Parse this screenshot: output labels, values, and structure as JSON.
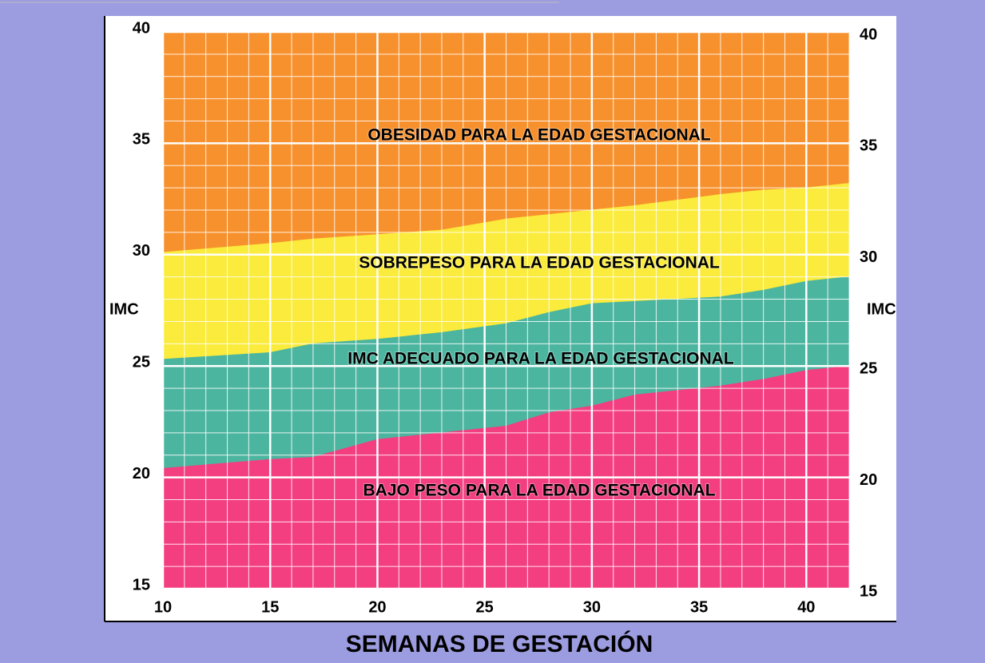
{
  "chart_data": {
    "type": "band",
    "x_label": "SEMANAS DE GESTACIÓN",
    "y_label": "IMC",
    "x": [
      10,
      15,
      17,
      20,
      23,
      26,
      28,
      30,
      32,
      36,
      38,
      40,
      42
    ],
    "boundaries": [
      [
        20.4,
        20.8,
        20.9,
        21.7,
        22.0,
        22.3,
        22.9,
        23.2,
        23.7,
        24.1,
        24.4,
        24.8,
        25.0
      ],
      [
        25.3,
        25.6,
        26.0,
        26.2,
        26.5,
        26.9,
        27.4,
        27.8,
        27.9,
        28.1,
        28.4,
        28.8,
        29.0
      ],
      [
        30.1,
        30.5,
        30.7,
        30.9,
        31.1,
        31.6,
        31.8,
        32.0,
        32.2,
        32.7,
        32.9,
        33.0,
        33.2
      ]
    ],
    "bands": [
      {
        "name": "BAJO PESO PARA LA EDAD GESTACIONAL",
        "color": "#f33e80"
      },
      {
        "name": "IMC ADECUADO PARA LA EDAD GESTACIONAL",
        "color": "#4cb5a0"
      },
      {
        "name": "SOBREPESO PARA LA EDAD GESTACIONAL",
        "color": "#faeb3c"
      },
      {
        "name": "OBESIDAD PARA LA EDAD GESTACIONAL",
        "color": "#f7912d"
      }
    ],
    "xlim": [
      10,
      42
    ],
    "ylim": [
      15,
      40
    ],
    "xticks": [
      10,
      15,
      20,
      25,
      30,
      35,
      40
    ],
    "yticks": [
      15,
      20,
      25,
      30,
      35,
      40
    ],
    "xminorticks": [
      10,
      11,
      12,
      13,
      14,
      15,
      16,
      17,
      18,
      19,
      20,
      21,
      22,
      23,
      24,
      25,
      26,
      27,
      28,
      29,
      30,
      31,
      32,
      33,
      34,
      35,
      36,
      37,
      38,
      39,
      40,
      41,
      42
    ],
    "yminorticks": [
      15,
      16,
      17,
      18,
      19,
      20,
      21,
      22,
      23,
      24,
      25,
      26,
      27,
      28,
      29,
      30,
      31,
      32,
      33,
      34,
      35,
      36,
      37,
      38,
      39,
      40
    ],
    "grid": true
  }
}
